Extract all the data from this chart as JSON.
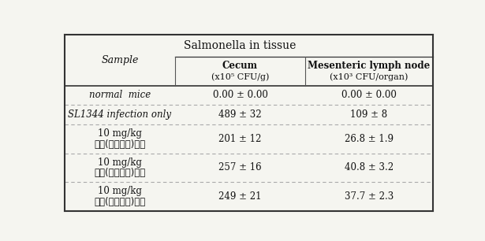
{
  "title": "Salmonella in tissue",
  "col_header_1": "Sample",
  "col_header_2": "Cecum",
  "col_header_2_sub": "(x10⁵ CFU/g)",
  "col_header_3": "Mesenteric lymph node",
  "col_header_3_sub": "(x10³ CFU/organ)",
  "rows": [
    {
      "sample_line1": "normal  mice",
      "sample_line2": "",
      "cecum": "0.00 ± 0.00",
      "lymph": "0.00 ± 0.00"
    },
    {
      "sample_line1": "SL1344 infection only",
      "sample_line2": "",
      "cecum": "489 ± 32",
      "lymph": "109 ± 8"
    },
    {
      "sample_line1": "10 mg/kg",
      "sample_line2": "미강(생물전환)산물",
      "cecum": "201 ± 12",
      "lymph": "26.8 ± 1.9"
    },
    {
      "sample_line1": "10 mg/kg",
      "sample_line2": "대두(생물전환)산물",
      "cecum": "257 ± 16",
      "lymph": "40.8 ± 3.2"
    },
    {
      "sample_line1": "10 mg/kg",
      "sample_line2": "참깨(생물전환)산물",
      "cecum": "249 ± 21",
      "lymph": "37.7 ± 2.3"
    }
  ],
  "bg_color": "#f5f5f0",
  "text_color": "#111111",
  "line_color": "#aaaaaa",
  "header_fontsize": 8.5,
  "cell_fontsize": 8.5,
  "title_fontsize": 10
}
